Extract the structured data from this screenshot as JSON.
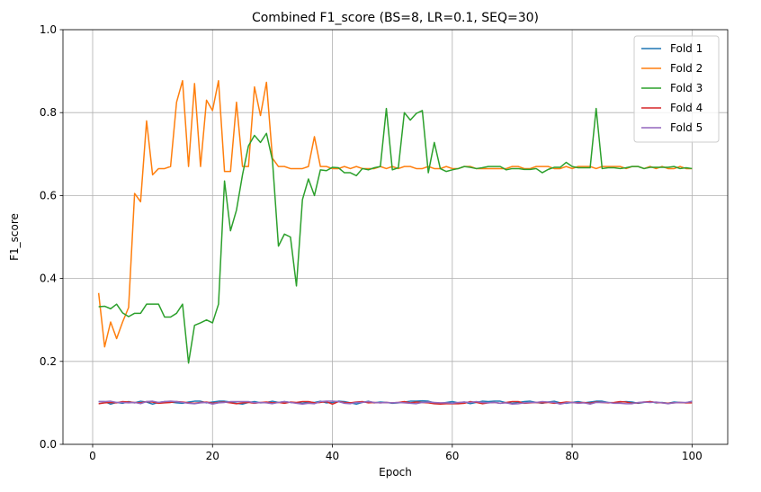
{
  "chart_data": {
    "type": "line",
    "title": "Combined F1_score (BS=8, LR=0.1, SEQ=30)",
    "xlabel": "Epoch",
    "ylabel": "F1_score",
    "xlim": [
      -4.95,
      105.95
    ],
    "ylim": [
      0,
      1
    ],
    "xticks": [
      0,
      20,
      40,
      60,
      80,
      100
    ],
    "yticks": [
      0.0,
      0.2,
      0.4,
      0.6,
      0.8,
      1.0
    ],
    "xtick_labels": [
      "0",
      "20",
      "40",
      "60",
      "80",
      "100"
    ],
    "ytick_labels": [
      "0.0",
      "0.2",
      "0.4",
      "0.6",
      "0.8",
      "1.0"
    ],
    "grid": true,
    "legend": "top-right",
    "x_start": 1,
    "series": [
      {
        "name": "Fold 1",
        "color": "#1f77b4",
        "values": [
          0.103,
          0.103,
          0.097,
          0.101,
          0.099,
          0.103,
          0.1,
          0.104,
          0.102,
          0.097,
          0.101,
          0.103,
          0.102,
          0.1,
          0.099,
          0.102,
          0.104,
          0.104,
          0.1,
          0.102,
          0.104,
          0.104,
          0.102,
          0.099,
          0.097,
          0.101,
          0.103,
          0.1,
          0.101,
          0.104,
          0.101,
          0.103,
          0.101,
          0.1,
          0.099,
          0.102,
          0.101,
          0.104,
          0.1,
          0.101,
          0.104,
          0.103,
          0.1,
          0.097,
          0.101,
          0.104,
          0.1,
          0.102,
          0.101,
          0.099,
          0.1,
          0.102,
          0.104,
          0.104,
          0.105,
          0.104,
          0.1,
          0.099,
          0.101,
          0.103,
          0.1,
          0.102,
          0.098,
          0.101,
          0.104,
          0.103,
          0.104,
          0.104,
          0.1,
          0.099,
          0.101,
          0.103,
          0.104,
          0.101,
          0.099,
          0.102,
          0.104,
          0.1,
          0.099,
          0.101,
          0.103,
          0.1,
          0.102,
          0.104,
          0.104,
          0.101,
          0.1,
          0.102,
          0.103,
          0.102,
          0.099,
          0.101,
          0.103,
          0.1,
          0.101,
          0.099,
          0.102,
          0.101,
          0.1,
          0.104
        ]
      },
      {
        "name": "Fold 2",
        "color": "#ff7f0e",
        "values": [
          0.365,
          0.235,
          0.295,
          0.255,
          0.295,
          0.33,
          0.605,
          0.585,
          0.78,
          0.65,
          0.665,
          0.665,
          0.67,
          0.825,
          0.877,
          0.67,
          0.87,
          0.67,
          0.83,
          0.805,
          0.877,
          0.658,
          0.658,
          0.825,
          0.67,
          0.67,
          0.862,
          0.793,
          0.873,
          0.69,
          0.67,
          0.67,
          0.665,
          0.665,
          0.665,
          0.67,
          0.742,
          0.67,
          0.67,
          0.665,
          0.665,
          0.67,
          0.665,
          0.67,
          0.665,
          0.665,
          0.665,
          0.67,
          0.665,
          0.67,
          0.665,
          0.67,
          0.67,
          0.665,
          0.665,
          0.67,
          0.665,
          0.665,
          0.67,
          0.665,
          0.665,
          0.67,
          0.67,
          0.665,
          0.665,
          0.665,
          0.665,
          0.665,
          0.665,
          0.67,
          0.67,
          0.665,
          0.665,
          0.67,
          0.67,
          0.67,
          0.665,
          0.665,
          0.67,
          0.665,
          0.67,
          0.67,
          0.67,
          0.665,
          0.67,
          0.67,
          0.67,
          0.67,
          0.665,
          0.67,
          0.67,
          0.665,
          0.67,
          0.665,
          0.67,
          0.665,
          0.665,
          0.67,
          0.665,
          0.665
        ]
      },
      {
        "name": "Fold 3",
        "color": "#2ca02c",
        "values": [
          0.332,
          0.333,
          0.327,
          0.338,
          0.317,
          0.308,
          0.316,
          0.316,
          0.338,
          0.338,
          0.338,
          0.307,
          0.307,
          0.316,
          0.338,
          0.196,
          0.287,
          0.293,
          0.3,
          0.293,
          0.338,
          0.635,
          0.515,
          0.565,
          0.65,
          0.72,
          0.745,
          0.728,
          0.75,
          0.685,
          0.478,
          0.507,
          0.5,
          0.382,
          0.59,
          0.64,
          0.6,
          0.662,
          0.66,
          0.668,
          0.667,
          0.655,
          0.655,
          0.648,
          0.665,
          0.662,
          0.667,
          0.67,
          0.81,
          0.662,
          0.667,
          0.8,
          0.782,
          0.798,
          0.805,
          0.655,
          0.728,
          0.665,
          0.658,
          0.662,
          0.665,
          0.67,
          0.668,
          0.665,
          0.667,
          0.67,
          0.67,
          0.67,
          0.662,
          0.665,
          0.665,
          0.663,
          0.663,
          0.665,
          0.655,
          0.663,
          0.668,
          0.668,
          0.68,
          0.67,
          0.667,
          0.667,
          0.667,
          0.81,
          0.665,
          0.667,
          0.667,
          0.665,
          0.667,
          0.67,
          0.67,
          0.665,
          0.668,
          0.668,
          0.668,
          0.668,
          0.67,
          0.665,
          0.667,
          0.665
        ]
      },
      {
        "name": "Fold 4",
        "color": "#d62728",
        "values": [
          0.098,
          0.1,
          0.101,
          0.1,
          0.103,
          0.102,
          0.101,
          0.1,
          0.103,
          0.102,
          0.099,
          0.1,
          0.101,
          0.103,
          0.102,
          0.1,
          0.099,
          0.101,
          0.102,
          0.099,
          0.101,
          0.102,
          0.1,
          0.098,
          0.1,
          0.101,
          0.099,
          0.101,
          0.102,
          0.1,
          0.101,
          0.099,
          0.102,
          0.101,
          0.103,
          0.103,
          0.1,
          0.101,
          0.103,
          0.097,
          0.103,
          0.101,
          0.1,
          0.102,
          0.103,
          0.1,
          0.101,
          0.1,
          0.101,
          0.1,
          0.101,
          0.103,
          0.1,
          0.102,
          0.101,
          0.1,
          0.098,
          0.097,
          0.098,
          0.098,
          0.098,
          0.099,
          0.103,
          0.101,
          0.098,
          0.1,
          0.101,
          0.099,
          0.101,
          0.103,
          0.103,
          0.099,
          0.1,
          0.101,
          0.1,
          0.101,
          0.099,
          0.1,
          0.102,
          0.101,
          0.1,
          0.101,
          0.099,
          0.102,
          0.101,
          0.1,
          0.101,
          0.103,
          0.102,
          0.099,
          0.1,
          0.102,
          0.103,
          0.101,
          0.1,
          0.099,
          0.1,
          0.101,
          0.1,
          0.1
        ]
      },
      {
        "name": "Fold 5",
        "color": "#9467bd",
        "values": [
          0.103,
          0.103,
          0.104,
          0.101,
          0.101,
          0.1,
          0.101,
          0.098,
          0.103,
          0.104,
          0.101,
          0.103,
          0.104,
          0.103,
          0.101,
          0.099,
          0.098,
          0.1,
          0.101,
          0.097,
          0.1,
          0.101,
          0.103,
          0.103,
          0.103,
          0.103,
          0.1,
          0.101,
          0.1,
          0.098,
          0.101,
          0.103,
          0.101,
          0.099,
          0.097,
          0.099,
          0.098,
          0.103,
          0.104,
          0.104,
          0.103,
          0.099,
          0.098,
          0.101,
          0.101,
          0.103,
          0.101,
          0.1,
          0.101,
          0.1,
          0.101,
          0.1,
          0.099,
          0.098,
          0.101,
          0.102,
          0.101,
          0.1,
          0.1,
          0.099,
          0.101,
          0.102,
          0.101,
          0.103,
          0.101,
          0.1,
          0.101,
          0.099,
          0.1,
          0.097,
          0.098,
          0.1,
          0.101,
          0.101,
          0.103,
          0.102,
          0.101,
          0.097,
          0.1,
          0.101,
          0.099,
          0.1,
          0.097,
          0.101,
          0.101,
          0.101,
          0.099,
          0.099,
          0.098,
          0.098,
          0.101,
          0.102,
          0.101,
          0.102,
          0.1,
          0.098,
          0.1,
          0.101,
          0.101,
          0.103
        ]
      }
    ]
  }
}
